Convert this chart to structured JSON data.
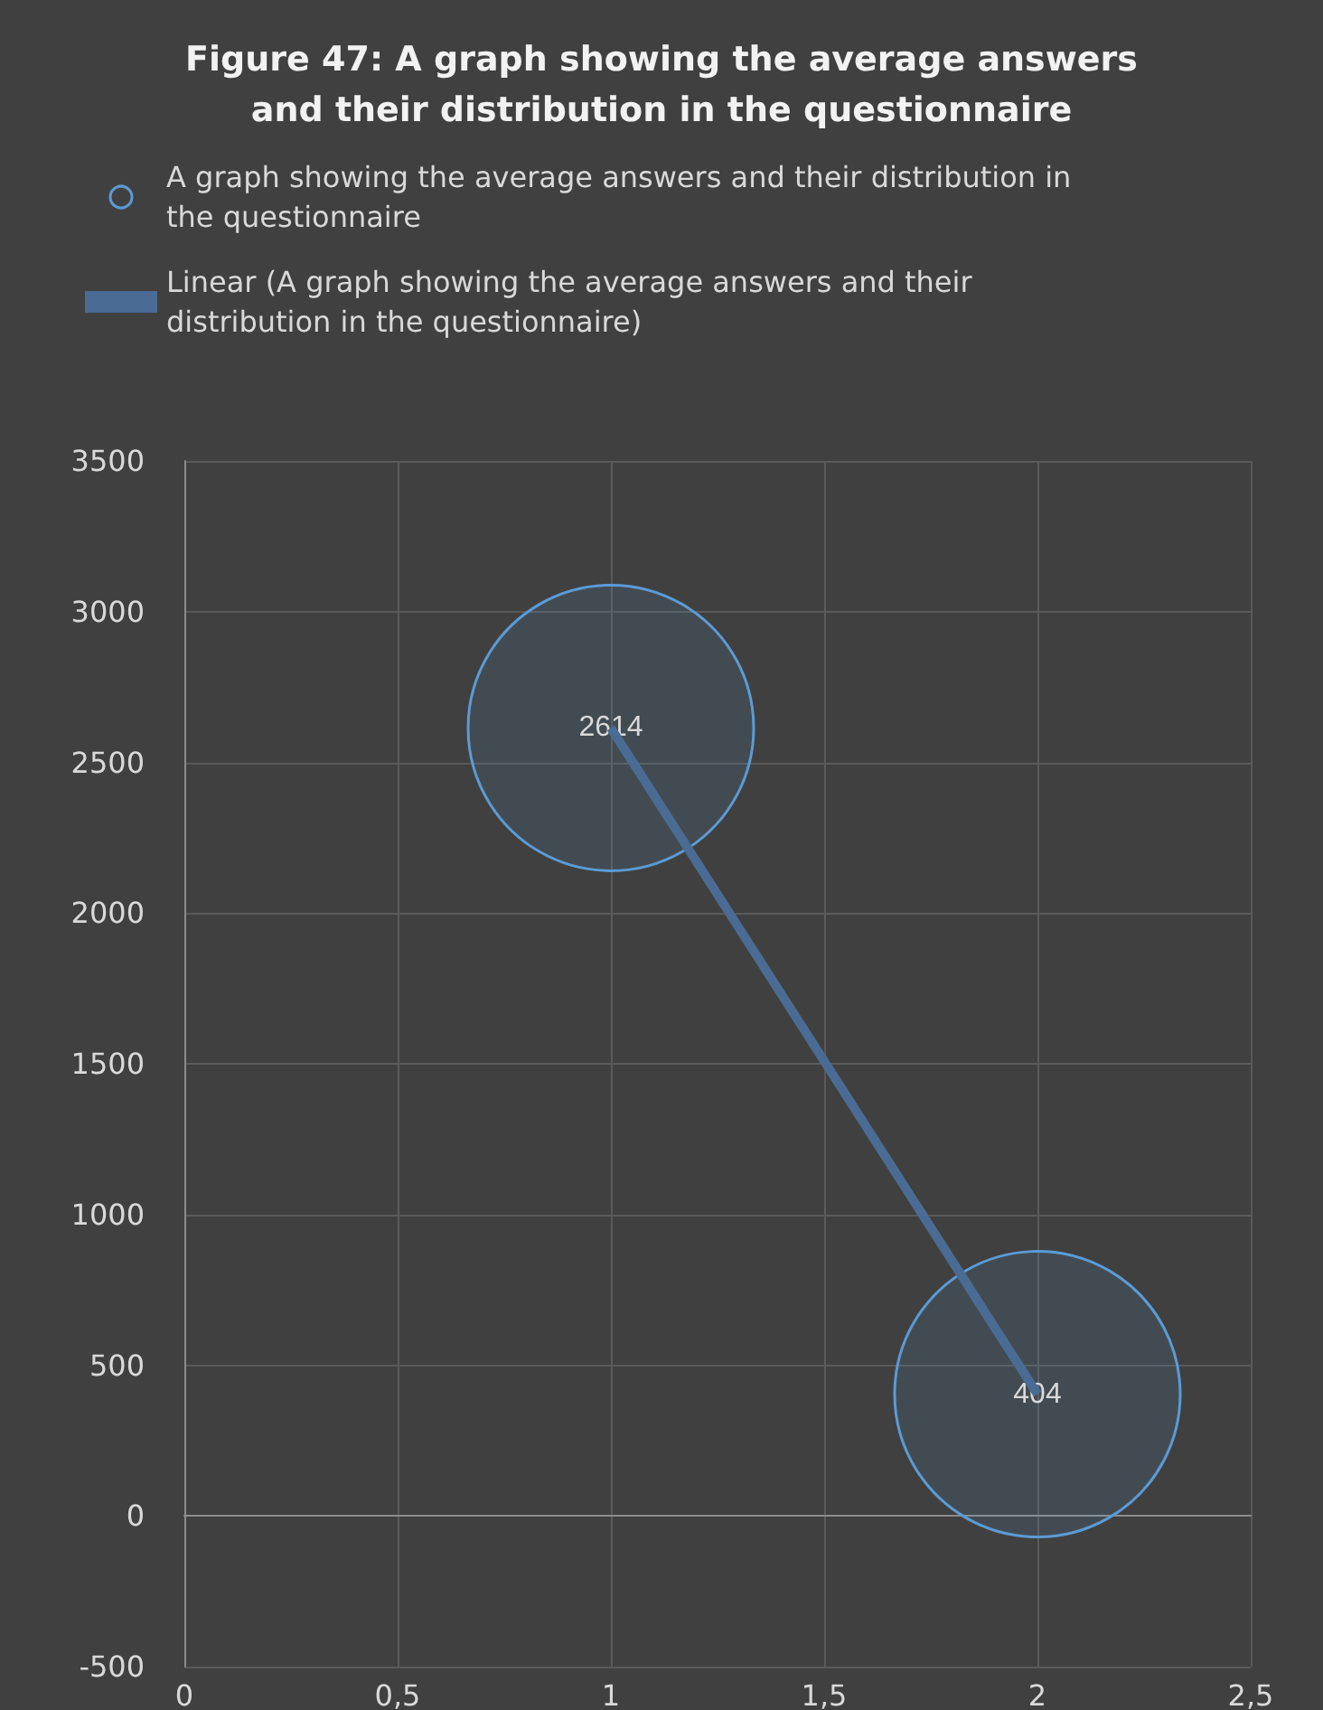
{
  "chart_data": {
    "type": "bubble",
    "title": "Figure 47: A graph showing the average answers\nand their distribution in the questionnaire",
    "x": [
      1,
      2
    ],
    "series": [
      {
        "name": "A graph showing the average answers and their distribution in the questionnaire",
        "color": "#5b9bd5",
        "values": [
          2614,
          404
        ],
        "sizes": [
          1,
          1
        ],
        "value_labels": [
          "2614",
          "404"
        ]
      },
      {
        "name": "Linear (A graph showing the average answers and their distribution in the questionnaire)",
        "type": "line",
        "color": "#4a6c94",
        "values": [
          2614,
          404
        ],
        "marker": "none"
      }
    ],
    "xlim": [
      0,
      2.5
    ],
    "xticks": [
      0,
      {
        "value": 0.5,
        "label": "0,5"
      },
      1,
      {
        "value": 1.5,
        "label": "1,5"
      },
      2,
      {
        "value": 2.5,
        "label": "2,5"
      }
    ],
    "ylim": [
      -500,
      3500
    ],
    "yticks": [
      -500,
      0,
      500,
      1000,
      1500,
      2000,
      2500,
      3000,
      3500
    ],
    "grid": true,
    "legend": "top"
  }
}
